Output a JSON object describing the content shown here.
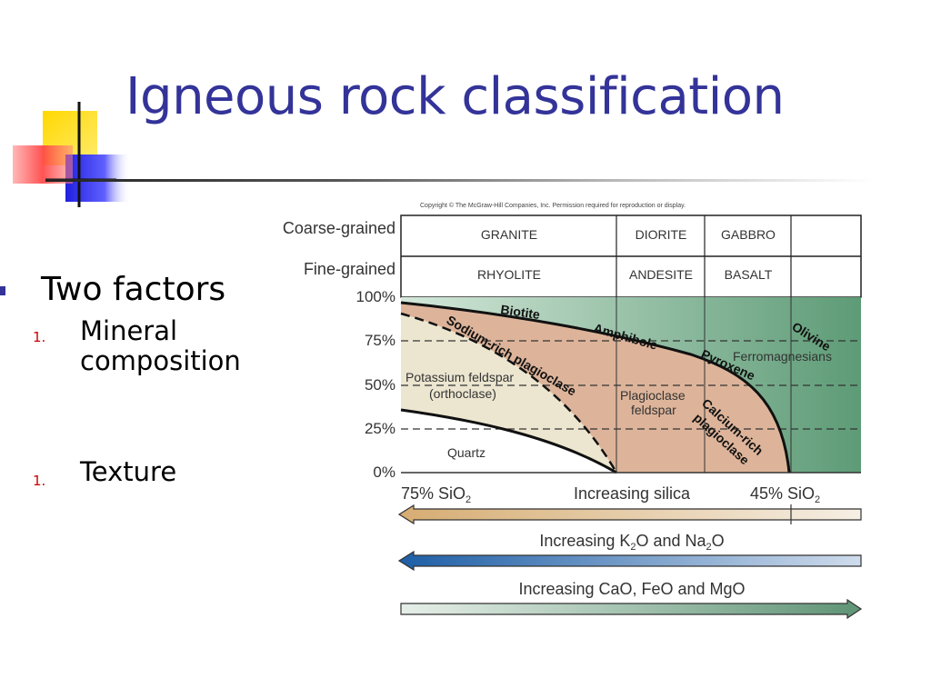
{
  "slide": {
    "title": "Igneous rock classification"
  },
  "bullets": {
    "main": "Two factors",
    "items": [
      {
        "number": "1.",
        "lines": [
          "Mineral",
          "composition"
        ]
      },
      {
        "number": "1.",
        "lines": [
          "Texture"
        ]
      }
    ]
  },
  "diagram": {
    "copyright": "Copyright © The McGraw-Hill Companies, Inc. Permission required for reproduction or display.",
    "row_labels": {
      "coarse": "Coarse-grained",
      "fine": "Fine-grained"
    },
    "coarse_rocks": [
      "GRANITE",
      "DIORITE",
      "GABBRO"
    ],
    "fine_rocks": [
      "RHYOLITE",
      "ANDESITE",
      "BASALT"
    ],
    "y_axis": [
      "100%",
      "75%",
      "50%",
      "25%",
      "0%"
    ],
    "minerals": {
      "biotite": "Biotite",
      "amphibole": "Amphibole",
      "olivine": "Olivine",
      "pyroxene": "Pyroxene",
      "ferromagnesians": "Ferromagnesians",
      "sodium_plagioclase": "Sodium-rich plagioclase",
      "potassium_feldspar": [
        "Potassium feldspar",
        "(orthoclase)"
      ],
      "plagioclase_feldspar": [
        "Plagioclase",
        "feldspar"
      ],
      "calcium_plagioclase": [
        "Calcium-rich",
        "plagioclase"
      ],
      "quartz": "Quartz"
    },
    "silica_left": "75% SiO",
    "silica_left_sub": "2",
    "silica_center": "Increasing silica",
    "silica_right": "45% SiO",
    "silica_right_sub": "2",
    "arrow_k2o": {
      "pre": "Increasing K",
      "sub1": "2",
      "mid": "O and Na",
      "sub2": "2",
      "post": "O"
    },
    "arrow_cao": "Increasing CaO, FeO and MgO",
    "colors": {
      "title": "#333399",
      "green_light": "#d2e6d8",
      "green_dark": "#5f9c78",
      "feldspar_pink": "#ddb49a",
      "orthoclase_cream": "#ece6d0",
      "silica_arrow": "#d8b27c",
      "k2o_arrow": "#2a6cae",
      "cao_arrow": "#6f9e80"
    }
  }
}
